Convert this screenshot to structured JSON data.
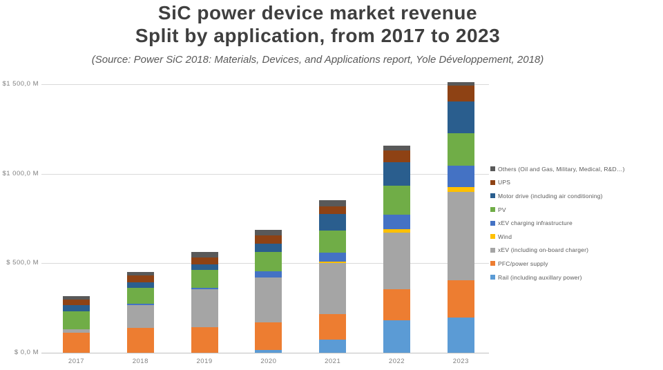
{
  "header": {
    "title_line1": "SiC power device market revenue",
    "title_line2": "Split by application, from 2017 to 2023",
    "source": "(Source: Power SiC 2018: Materials, Devices, and Applications report, Yole Développement, 2018)"
  },
  "y_axis": {
    "ticks": [
      {
        "label": "$1 500,0 M",
        "value": 1500
      },
      {
        "label": "$1 000,0 M",
        "value": 1000
      },
      {
        "label": "$ 500,0 M",
        "value": 500
      },
      {
        "label": "$ 0,0 M",
        "value": 0
      }
    ]
  },
  "chart_data": {
    "type": "bar",
    "stacked": true,
    "title": "SiC power device market revenue, split by application, 2017-2023",
    "unit": "USD millions",
    "ylim": [
      0,
      1500
    ],
    "grid": true,
    "legend_position": "right",
    "stack_order": "first series listed is the TOP segment of each bar",
    "categories": [
      "2017",
      "2018",
      "2019",
      "2020",
      "2021",
      "2022",
      "2023"
    ],
    "series": [
      {
        "name": "Others (Oil and Gas, Military, Medical, R&D…)",
        "color": "#595959",
        "values": [
          18,
          19,
          30,
          30,
          35,
          28,
          20
        ]
      },
      {
        "name": "UPS",
        "color": "#8e4214",
        "values": [
          32,
          39,
          39,
          47,
          45,
          68,
          88
        ]
      },
      {
        "name": "Motor drive (including air conditioning)",
        "color": "#2a5e8e",
        "values": [
          33,
          30,
          31,
          45,
          90,
          129,
          180
        ]
      },
      {
        "name": "PV",
        "color": "#70ad47",
        "values": [
          100,
          90,
          100,
          109,
          126,
          161,
          180
        ]
      },
      {
        "name": "xEV charging infrastructure",
        "color": "#4472c4",
        "values": [
          0,
          8,
          10,
          32,
          48,
          84,
          122
        ]
      },
      {
        "name": "Wind",
        "color": "#ffc000",
        "values": [
          0,
          0,
          0,
          0,
          9,
          17,
          26
        ]
      },
      {
        "name": "xEV (including on-board charger)",
        "color": "#a5a5a5",
        "values": [
          22,
          127,
          211,
          251,
          286,
          318,
          495
        ]
      },
      {
        "name": "PFC/power supply",
        "color": "#ed7d31",
        "values": [
          110,
          139,
          143,
          154,
          142,
          174,
          206
        ]
      },
      {
        "name": "Rail (including auxillary power)",
        "color": "#5b9bd5",
        "values": [
          0,
          0,
          0,
          17,
          73,
          180,
          197
        ]
      }
    ],
    "totals": [
      315,
      452,
      564,
      685,
      854,
      1159,
      1514
    ]
  }
}
